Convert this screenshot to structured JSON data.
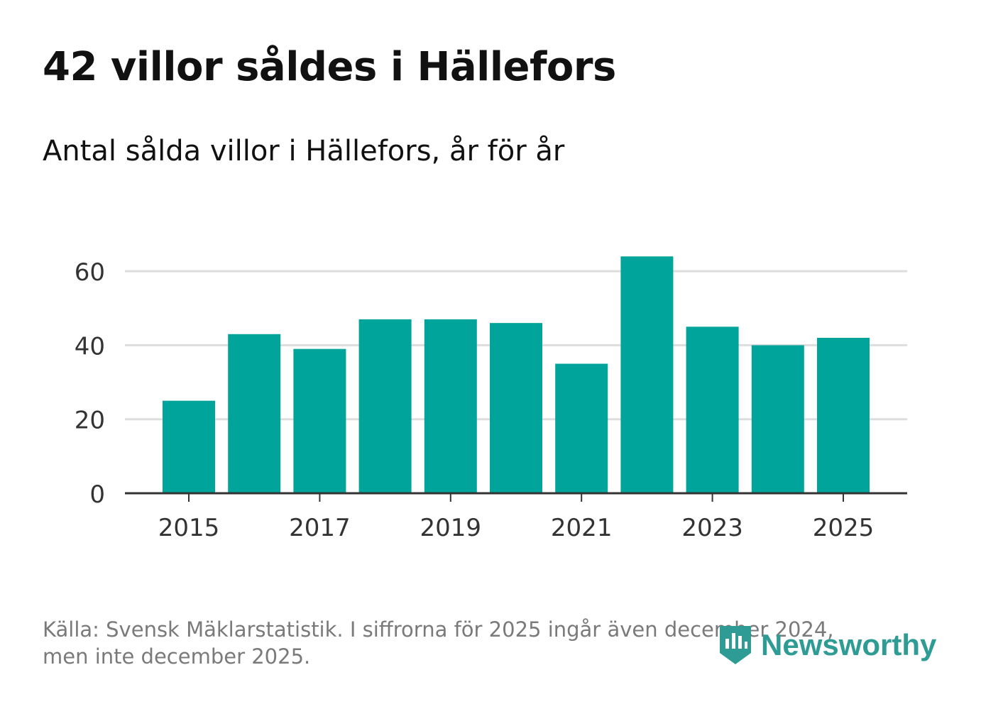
{
  "title": "42 villor såldes i Hällefors",
  "subtitle": "Antal sålda villor i Hällefors, år för år",
  "source": {
    "line1": "Källa: Svensk Mäklarstatistik. I siffrorna för 2025 ingår även december 2024,",
    "line2": "men inte december 2025."
  },
  "logo": {
    "text": "Newsworthy",
    "icon": "newsworthy-chart-icon"
  },
  "colors": {
    "bar": "#00a49a",
    "grid": "#dddddd",
    "axis": "#333333",
    "logo": "#2e9b94"
  },
  "chart_data": {
    "type": "bar",
    "title": "Antal sålda villor i Hällefors, år för år",
    "xlabel": "",
    "ylabel": "",
    "categories": [
      "2015",
      "2016",
      "2017",
      "2018",
      "2019",
      "2020",
      "2021",
      "2022",
      "2023",
      "2024",
      "2025"
    ],
    "values": [
      25,
      43,
      39,
      47,
      47,
      46,
      35,
      64,
      45,
      40,
      42
    ],
    "ylim": [
      0,
      70
    ],
    "yticks": [
      0,
      20,
      40,
      60
    ],
    "xtick_labels": [
      "2015",
      "2017",
      "2019",
      "2021",
      "2023",
      "2025"
    ],
    "grid": true
  }
}
